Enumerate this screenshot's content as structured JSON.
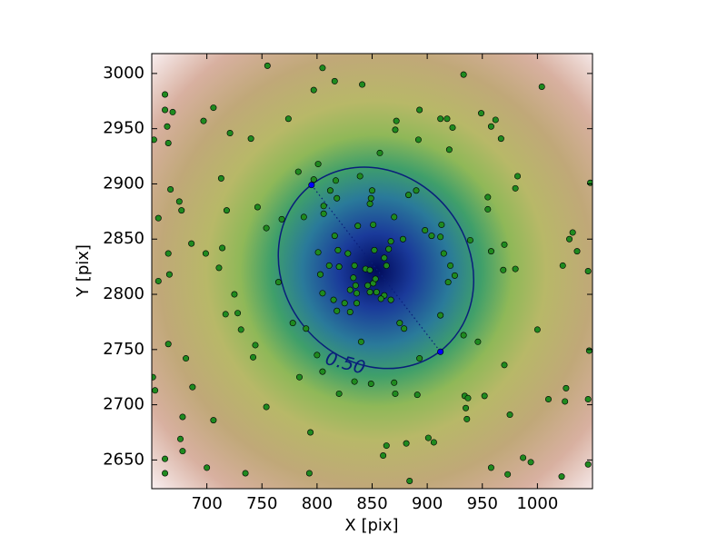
{
  "chart_data": {
    "type": "scatter",
    "xlabel": "X [pix]",
    "ylabel": "Y [pix]",
    "xlim": [
      650,
      1050
    ],
    "ylim": [
      2624,
      3018
    ],
    "xticks": [
      700,
      750,
      800,
      850,
      900,
      950,
      1000
    ],
    "yticks": [
      2650,
      2700,
      2750,
      2800,
      2850,
      2900,
      2950,
      3000
    ],
    "series": [
      {
        "color": "#1f8a1f",
        "x": [
          755,
          805,
          797,
          816,
          841,
          933,
          1004,
          662,
          662,
          669,
          697,
          706,
          664,
          665,
          721,
          740,
          774,
          872,
          871,
          893,
          912,
          918,
          923,
          949,
          962,
          958,
          967,
          892,
          920,
          857,
          652,
          801,
          783,
          797,
          713,
          667,
          675,
          677,
          718,
          656,
          982,
          980,
          955,
          955,
          1048,
          817,
          839,
          812,
          818,
          850,
          849,
          883,
          890,
          806,
          806,
          768,
          788,
          746,
          754,
          848,
          870,
          837,
          851,
          878,
          898,
          913,
          904,
          912,
          915,
          816,
          819,
          801,
          811,
          803,
          820,
          828,
          834,
          833,
          867,
          865,
          861,
          852,
          863,
          844,
          851,
          854,
          848,
          861,
          867,
          858,
          846,
          835,
          836,
          830,
          825,
          836,
          805,
          815,
          818,
          830,
          921,
          919,
          925,
          939,
          970,
          958,
          969,
          980,
          1032,
          1029,
          1036,
          1023,
          1046,
          686,
          665,
          666,
          656,
          699,
          711,
          714,
          725,
          717,
          728,
          731,
          744,
          742,
          765,
          778,
          790,
          875,
          879,
          912,
          933,
          946,
          1000,
          665,
          681,
          651,
          653,
          687,
          840,
          800,
          784,
          805,
          820,
          834,
          849,
          870,
          871,
          891,
          893,
          934,
          937,
          935,
          936,
          952,
          975,
          970,
          1010,
          1026,
          1025,
          1046,
          1047,
          754,
          706,
          678,
          676,
          678,
          662,
          700,
          662,
          735,
          794,
          793,
          863,
          860,
          881,
          901,
          906,
          884,
          958,
          973,
          987,
          994,
          1022,
          1046,
          848,
          853
        ],
        "y": [
          3007,
          3005,
          2985,
          2993,
          2990,
          2999,
          2988,
          2981,
          2967,
          2965,
          2957,
          2969,
          2952,
          2937,
          2946,
          2941,
          2959,
          2957,
          2949,
          2967,
          2959,
          2959,
          2951,
          2964,
          2958,
          2952,
          2941,
          2940,
          2931,
          2928,
          2940,
          2918,
          2911,
          2904,
          2905,
          2895,
          2884,
          2876,
          2876,
          2869,
          2907,
          2896,
          2888,
          2877,
          2901,
          2903,
          2907,
          2894,
          2887,
          2894,
          2887,
          2890,
          2894,
          2880,
          2873,
          2868,
          2870,
          2879,
          2860,
          2882,
          2870,
          2862,
          2863,
          2850,
          2858,
          2863,
          2853,
          2852,
          2837,
          2853,
          2840,
          2838,
          2826,
          2818,
          2825,
          2837,
          2826,
          2815,
          2848,
          2841,
          2833,
          2840,
          2826,
          2823,
          2810,
          2802,
          2802,
          2799,
          2795,
          2796,
          2808,
          2808,
          2801,
          2804,
          2792,
          2792,
          2801,
          2795,
          2785,
          2784,
          2826,
          2811,
          2817,
          2849,
          2845,
          2839,
          2822,
          2823,
          2856,
          2850,
          2839,
          2826,
          2821,
          2846,
          2837,
          2818,
          2812,
          2837,
          2824,
          2842,
          2800,
          2782,
          2783,
          2768,
          2754,
          2743,
          2811,
          2774,
          2769,
          2774,
          2769,
          2781,
          2763,
          2757,
          2768,
          2755,
          2742,
          2725,
          2713,
          2716,
          2757,
          2745,
          2725,
          2730,
          2710,
          2721,
          2719,
          2720,
          2710,
          2709,
          2742,
          2708,
          2706,
          2697,
          2687,
          2708,
          2691,
          2736,
          2705,
          2715,
          2703,
          2705,
          2749,
          2698,
          2686,
          2689,
          2669,
          2658,
          2651,
          2643,
          2638,
          2638,
          2675,
          2638,
          2663,
          2654,
          2665,
          2670,
          2666,
          2631,
          2643,
          2637,
          2652,
          2648,
          2635,
          2646,
          2822,
          2814
        ]
      },
      {
        "color": "#0000ff",
        "x": [
          795,
          912
        ],
        "y": [
          2899,
          2748
        ]
      }
    ],
    "contour": {
      "level": {
        "value": 0.5,
        "label": "0.50"
      },
      "color": "#0a1f7a",
      "center": [
        853.5,
        2824
      ],
      "a": 95.5,
      "b": 84,
      "angle": -52
    }
  }
}
